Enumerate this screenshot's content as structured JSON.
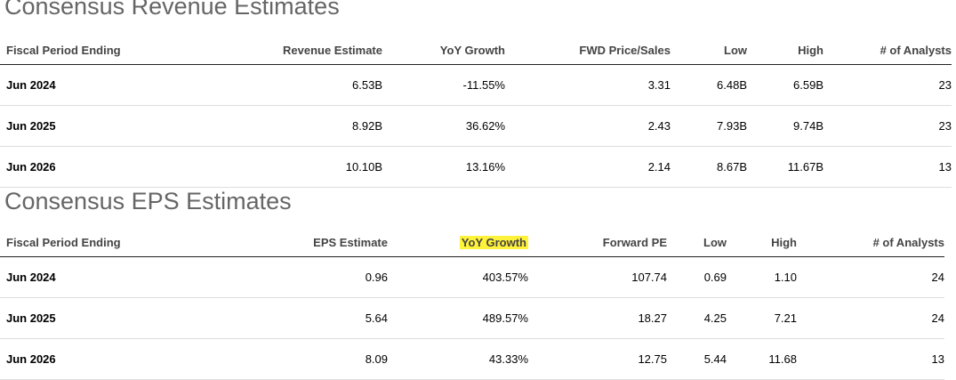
{
  "revenue": {
    "title": "Consensus Revenue Estimates",
    "headers": [
      "Fiscal Period Ending",
      "Revenue Estimate",
      "YoY Growth",
      "FWD Price/Sales",
      "Low",
      "High",
      "# of Analysts"
    ],
    "rows": [
      [
        "Jun 2024",
        "6.53B",
        "-11.55%",
        "3.31",
        "6.48B",
        "6.59B",
        "23"
      ],
      [
        "Jun 2025",
        "8.92B",
        "36.62%",
        "2.43",
        "7.93B",
        "9.74B",
        "23"
      ],
      [
        "Jun 2026",
        "10.10B",
        "13.16%",
        "2.14",
        "8.67B",
        "11.67B",
        "13"
      ]
    ]
  },
  "eps": {
    "title": "Consensus EPS Estimates",
    "headers": [
      "Fiscal Period Ending",
      "EPS Estimate",
      "YoY Growth",
      "Forward PE",
      "Low",
      "High",
      "# of Analysts"
    ],
    "highlighted_header": "YoY Growth",
    "highlight_color": "#fff23a",
    "rows": [
      [
        "Jun 2024",
        "0.96",
        "403.57%",
        "107.74",
        "0.69",
        "1.10",
        "24"
      ],
      [
        "Jun 2025",
        "5.64",
        "489.57%",
        "18.27",
        "4.25",
        "7.21",
        "24"
      ],
      [
        "Jun 2026",
        "8.09",
        "43.33%",
        "12.75",
        "5.44",
        "11.68",
        "13"
      ]
    ]
  }
}
